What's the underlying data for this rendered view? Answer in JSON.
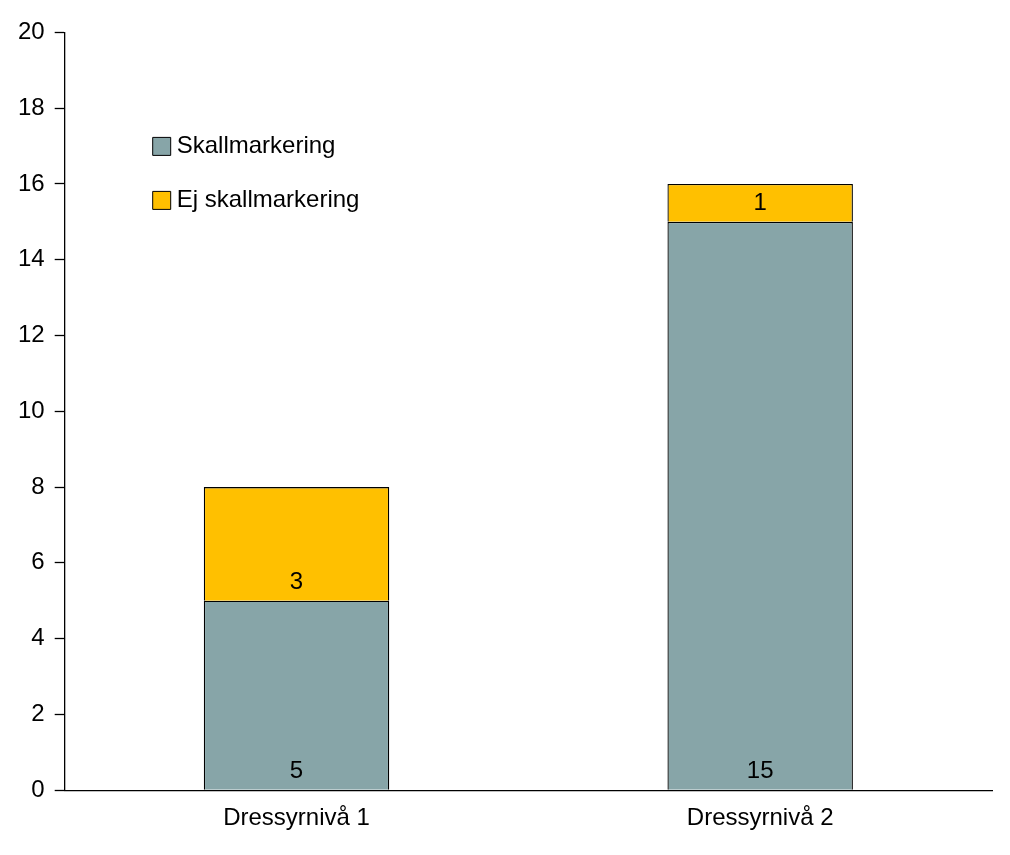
{
  "chart_data": {
    "type": "bar",
    "stacked": true,
    "categories": [
      "Dressyrnivå 1",
      "Dressyrnivå 2"
    ],
    "series": [
      {
        "name": "Skallmarkering",
        "color": "#87a5a8",
        "values": [
          5,
          15
        ]
      },
      {
        "name": "Ej skallmarkering",
        "color": "#ffc000",
        "values": [
          3,
          1
        ]
      }
    ],
    "ylim": [
      0,
      20
    ],
    "yticks": [
      0,
      2,
      4,
      6,
      8,
      10,
      12,
      14,
      16,
      18,
      20
    ],
    "grid": false,
    "legend": "top left",
    "data_labels": true
  }
}
